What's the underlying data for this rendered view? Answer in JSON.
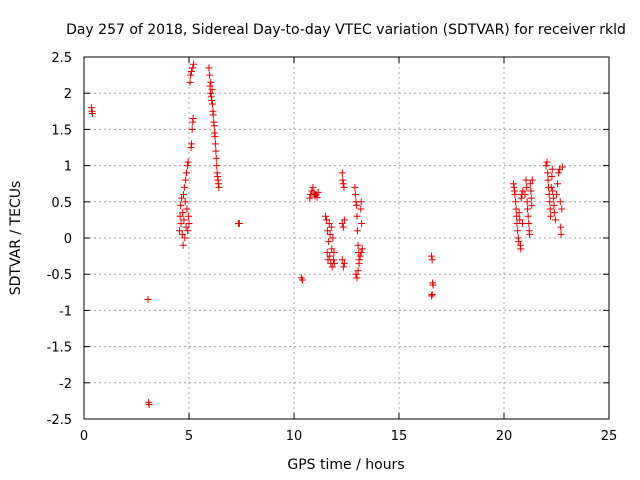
{
  "chart_data": {
    "type": "scatter",
    "title": "Day 257 of 2018, Sidereal Day-to-day VTEC variation (SDTVAR) for receiver rkld",
    "xlabel": "GPS time / hours",
    "ylabel": "SDTVAR / TECUs",
    "xlim": [
      0,
      25
    ],
    "ylim": [
      -2.5,
      2.5
    ],
    "xticks": [
      0,
      5,
      10,
      15,
      20,
      25
    ],
    "xtick_labels": [
      "0",
      "5",
      "10",
      "15",
      "20",
      "25"
    ],
    "yticks": [
      -2.5,
      -2,
      -1.5,
      -1,
      -0.5,
      0,
      0.5,
      1,
      1.5,
      2,
      2.5
    ],
    "ytick_labels": [
      "-2.5",
      "-2",
      "-1.5",
      "-1",
      "-0.5",
      "0",
      "0.5",
      "1",
      "1.5",
      "2",
      "2.5"
    ],
    "grid": true,
    "marker": "+",
    "color": "#e00000",
    "series": [
      {
        "name": "SDTVAR",
        "points": [
          [
            0.35,
            1.8
          ],
          [
            0.38,
            1.75
          ],
          [
            0.4,
            1.72
          ],
          [
            3.05,
            -0.85
          ],
          [
            3.08,
            -2.27
          ],
          [
            3.1,
            -2.3
          ],
          [
            4.55,
            0.1
          ],
          [
            4.58,
            0.3
          ],
          [
            4.6,
            0.45
          ],
          [
            4.62,
            0.2
          ],
          [
            4.65,
            0.55
          ],
          [
            4.68,
            0.05
          ],
          [
            4.7,
            0.35
          ],
          [
            4.72,
            -0.1
          ],
          [
            4.74,
            0.6
          ],
          [
            4.76,
            0.25
          ],
          [
            4.78,
            0.7
          ],
          [
            4.8,
            0.0
          ],
          [
            4.82,
            0.5
          ],
          [
            4.84,
            0.8
          ],
          [
            4.86,
            0.15
          ],
          [
            4.88,
            0.9
          ],
          [
            4.9,
            0.4
          ],
          [
            4.92,
            1.0
          ],
          [
            4.94,
            0.1
          ],
          [
            4.96,
            1.05
          ],
          [
            4.98,
            0.3
          ],
          [
            5.0,
            0.2
          ],
          [
            5.1,
            1.25
          ],
          [
            5.12,
            1.3
          ],
          [
            5.15,
            1.5
          ],
          [
            5.18,
            1.6
          ],
          [
            5.2,
            1.65
          ],
          [
            5.05,
            2.15
          ],
          [
            5.08,
            2.25
          ],
          [
            5.12,
            2.3
          ],
          [
            5.18,
            2.35
          ],
          [
            5.22,
            2.4
          ],
          [
            5.95,
            2.35
          ],
          [
            5.98,
            2.25
          ],
          [
            6.0,
            2.1
          ],
          [
            6.02,
            2.0
          ],
          [
            6.04,
            2.15
          ],
          [
            6.06,
            1.95
          ],
          [
            6.08,
            1.9
          ],
          [
            6.1,
            2.05
          ],
          [
            6.12,
            1.85
          ],
          [
            6.14,
            1.75
          ],
          [
            6.16,
            1.7
          ],
          [
            6.18,
            1.6
          ],
          [
            6.2,
            1.55
          ],
          [
            6.22,
            1.45
          ],
          [
            6.24,
            1.4
          ],
          [
            6.26,
            1.3
          ],
          [
            6.28,
            1.2
          ],
          [
            6.3,
            1.1
          ],
          [
            6.32,
            1.0
          ],
          [
            6.34,
            0.9
          ],
          [
            6.36,
            0.85
          ],
          [
            6.38,
            0.8
          ],
          [
            6.4,
            0.75
          ],
          [
            6.42,
            0.7
          ],
          [
            7.35,
            0.2
          ],
          [
            7.4,
            0.2
          ],
          [
            10.35,
            -0.55
          ],
          [
            10.4,
            -0.58
          ],
          [
            10.75,
            0.55
          ],
          [
            10.8,
            0.6
          ],
          [
            10.85,
            0.65
          ],
          [
            10.9,
            0.7
          ],
          [
            10.95,
            0.62
          ],
          [
            11.0,
            0.58
          ],
          [
            11.05,
            0.6
          ],
          [
            11.1,
            0.56
          ],
          [
            11.15,
            0.63
          ],
          [
            11.5,
            0.3
          ],
          [
            11.55,
            0.25
          ],
          [
            11.58,
            -0.2
          ],
          [
            11.6,
            0.1
          ],
          [
            11.62,
            -0.3
          ],
          [
            11.65,
            -0.05
          ],
          [
            11.68,
            0.2
          ],
          [
            11.7,
            -0.25
          ],
          [
            11.72,
            0.05
          ],
          [
            11.75,
            -0.35
          ],
          [
            11.78,
            0.15
          ],
          [
            11.8,
            -0.15
          ],
          [
            11.82,
            -0.4
          ],
          [
            11.85,
            0.0
          ],
          [
            11.88,
            -0.3
          ],
          [
            11.9,
            -0.2
          ],
          [
            11.92,
            -0.35
          ],
          [
            12.3,
            0.9
          ],
          [
            12.32,
            0.8
          ],
          [
            12.35,
            0.75
          ],
          [
            12.38,
            0.7
          ],
          [
            12.3,
            0.2
          ],
          [
            12.35,
            0.15
          ],
          [
            12.4,
            0.25
          ],
          [
            12.3,
            -0.3
          ],
          [
            12.35,
            -0.4
          ],
          [
            12.4,
            -0.35
          ],
          [
            12.9,
            0.7
          ],
          [
            12.92,
            0.6
          ],
          [
            12.95,
            0.5
          ],
          [
            12.98,
            0.45
          ],
          [
            13.0,
            0.3
          ],
          [
            13.02,
            0.1
          ],
          [
            13.05,
            -0.1
          ],
          [
            13.08,
            -0.2
          ],
          [
            13.1,
            -0.3
          ],
          [
            12.95,
            -0.5
          ],
          [
            13.0,
            -0.55
          ],
          [
            13.05,
            -0.45
          ],
          [
            13.1,
            -0.35
          ],
          [
            13.15,
            -0.25
          ],
          [
            13.18,
            0.4
          ],
          [
            13.2,
            0.5
          ],
          [
            13.22,
            0.2
          ],
          [
            13.25,
            -0.15
          ],
          [
            13.2,
            -0.2
          ],
          [
            16.55,
            -0.25
          ],
          [
            16.58,
            -0.3
          ],
          [
            16.6,
            -0.62
          ],
          [
            16.62,
            -0.65
          ],
          [
            16.55,
            -0.8
          ],
          [
            16.58,
            -0.78
          ],
          [
            20.45,
            0.75
          ],
          [
            20.48,
            0.7
          ],
          [
            20.5,
            0.65
          ],
          [
            20.52,
            0.6
          ],
          [
            20.55,
            0.5
          ],
          [
            20.58,
            0.4
          ],
          [
            20.6,
            0.3
          ],
          [
            20.62,
            0.2
          ],
          [
            20.65,
            0.1
          ],
          [
            20.68,
            0.0
          ],
          [
            20.7,
            -0.05
          ],
          [
            20.72,
            0.35
          ],
          [
            20.75,
            0.25
          ],
          [
            20.78,
            -0.1
          ],
          [
            20.8,
            -0.15
          ],
          [
            20.82,
            0.55
          ],
          [
            20.85,
            0.6
          ],
          [
            20.88,
            0.2
          ],
          [
            20.9,
            0.65
          ],
          [
            21.0,
            0.6
          ],
          [
            21.05,
            0.8
          ],
          [
            21.08,
            0.7
          ],
          [
            21.1,
            0.5
          ],
          [
            21.12,
            0.4
          ],
          [
            21.15,
            0.3
          ],
          [
            21.18,
            0.2
          ],
          [
            21.2,
            0.1
          ],
          [
            21.22,
            0.05
          ],
          [
            21.25,
            0.75
          ],
          [
            21.28,
            0.65
          ],
          [
            21.3,
            0.55
          ],
          [
            21.32,
            0.45
          ],
          [
            21.35,
            0.8
          ],
          [
            22.0,
            1.0
          ],
          [
            22.05,
            1.05
          ],
          [
            22.08,
            0.9
          ],
          [
            22.1,
            0.8
          ],
          [
            22.12,
            0.7
          ],
          [
            22.15,
            0.6
          ],
          [
            22.18,
            0.5
          ],
          [
            22.2,
            0.4
          ],
          [
            22.22,
            0.3
          ],
          [
            22.25,
            0.7
          ],
          [
            22.28,
            0.85
          ],
          [
            22.3,
            0.95
          ],
          [
            22.32,
            0.65
          ],
          [
            22.35,
            0.55
          ],
          [
            22.38,
            0.45
          ],
          [
            22.4,
            0.35
          ],
          [
            22.45,
            0.25
          ],
          [
            22.5,
            0.6
          ],
          [
            22.55,
            0.75
          ],
          [
            22.6,
            0.9
          ],
          [
            22.65,
            0.95
          ],
          [
            22.68,
            0.5
          ],
          [
            22.7,
            0.15
          ],
          [
            22.72,
            0.05
          ],
          [
            22.75,
            0.4
          ],
          [
            22.78,
            0.98
          ]
        ]
      }
    ]
  }
}
